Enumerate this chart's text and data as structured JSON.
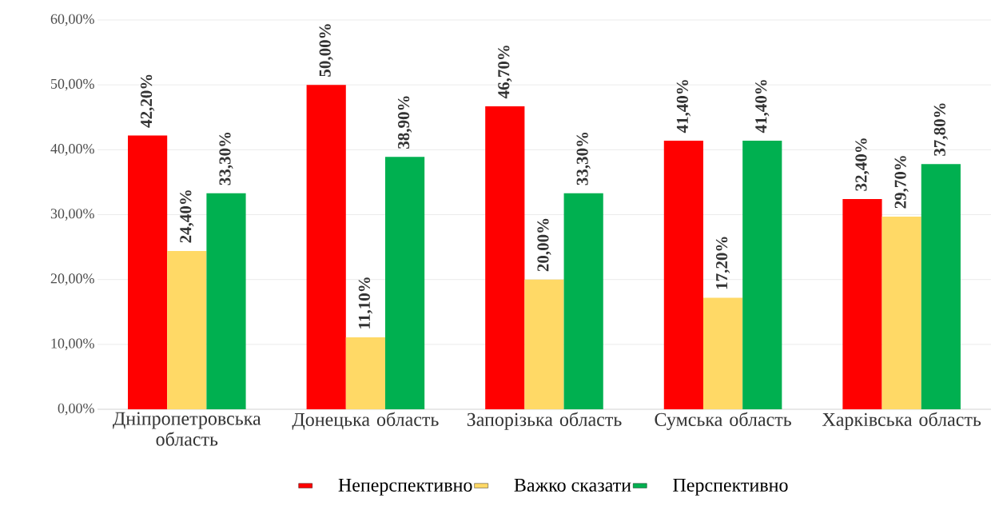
{
  "chart_data": {
    "type": "bar",
    "categories": [
      "Дніпропетровська область",
      "Донецька область",
      "Запорізька область",
      "Сумська область",
      "Харківська область"
    ],
    "series": [
      {
        "name": "Неперспективно",
        "color": "#ff0000",
        "values": [
          42.2,
          50.0,
          46.7,
          41.4,
          32.4
        ],
        "value_labels": [
          "42,20%",
          "50,00%",
          "46,70%",
          "41,40%",
          "32,40%"
        ]
      },
      {
        "name": "Важко сказати",
        "color": "#ffd966",
        "values": [
          24.4,
          11.1,
          20.0,
          17.2,
          29.7
        ],
        "value_labels": [
          "24,40%",
          "11,10%",
          "20,00%",
          "17,20%",
          "29,70%"
        ]
      },
      {
        "name": "Перспективно",
        "color": "#00b050",
        "values": [
          33.3,
          38.9,
          33.3,
          41.4,
          37.8
        ],
        "value_labels": [
          "33,30%",
          "38,90%",
          "33,30%",
          "41,40%",
          "37,80%"
        ]
      }
    ],
    "ylim": [
      0,
      60
    ],
    "yticks": [
      {
        "value": 0,
        "label": "0,00%"
      },
      {
        "value": 10,
        "label": "10,00%"
      },
      {
        "value": 20,
        "label": "20,00%"
      },
      {
        "value": 30,
        "label": "30,00%"
      },
      {
        "value": 40,
        "label": "40,00%"
      },
      {
        "value": 50,
        "label": "50,00%"
      },
      {
        "value": 60,
        "label": "60,00%"
      }
    ],
    "grid": "y",
    "legend": "bottom"
  }
}
